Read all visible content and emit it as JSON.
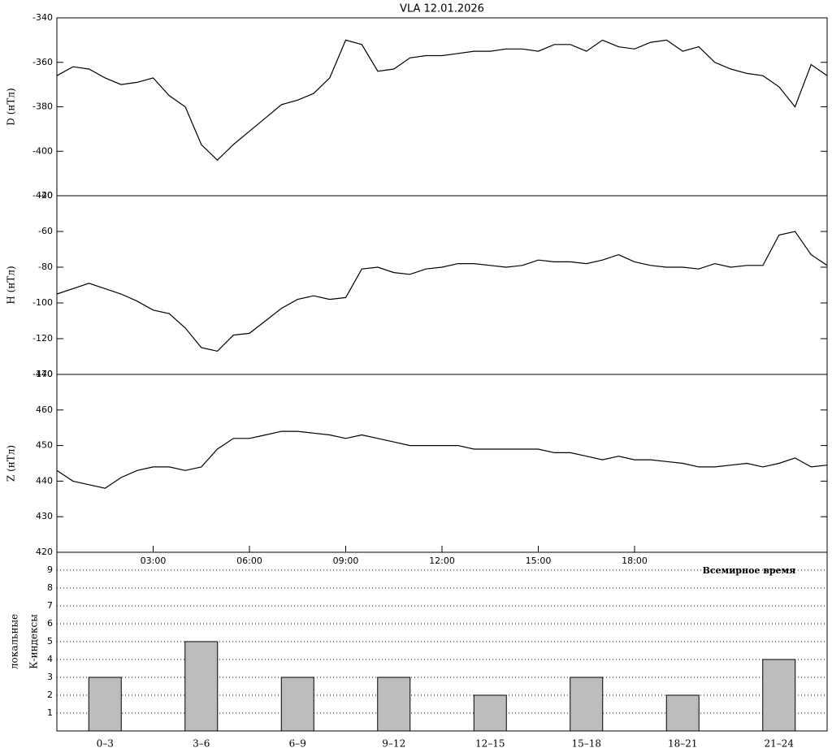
{
  "chart_data": [
    {
      "type": "line",
      "title": "VLA   12.01.2026",
      "ylabel": "D (нТл)",
      "color": "#000000",
      "xlim": [
        0,
        24
      ],
      "x": [
        0,
        0.5,
        1,
        1.5,
        2,
        2.5,
        3,
        3.5,
        4,
        4.5,
        5,
        5.5,
        6,
        6.5,
        7,
        7.5,
        8,
        8.5,
        9,
        9.5,
        10,
        10.5,
        11,
        11.5,
        12,
        12.5,
        13,
        13.5,
        14,
        14.5,
        15,
        15.5,
        16,
        16.5,
        17,
        17.5,
        18,
        18.5,
        19,
        19.5,
        20,
        20.5,
        21,
        21.5,
        22,
        22.5,
        23,
        23.5,
        24
      ],
      "values": [
        -366,
        -362,
        -363,
        -367,
        -370,
        -369,
        -367,
        -375,
        -380,
        -397,
        -404,
        -397,
        -391,
        -385,
        -379,
        -377,
        -374,
        -367,
        -350,
        -352,
        -364,
        -363,
        -358,
        -357,
        -357,
        -356,
        -355,
        -355,
        -354,
        -354,
        -355,
        -352,
        -352,
        -355,
        -350,
        -353,
        -354,
        -351,
        -350,
        -355,
        -353,
        -360,
        -363,
        -365,
        -366,
        -371,
        -380,
        -361,
        -366
      ],
      "ylim": [
        -420,
        -340
      ],
      "yticks": [
        -340,
        -360,
        -380,
        -400,
        -420
      ]
    },
    {
      "type": "line",
      "ylabel": "H (нТл)",
      "color": "#000000",
      "xlim": [
        0,
        24
      ],
      "x": [
        0,
        0.5,
        1,
        1.5,
        2,
        2.5,
        3,
        3.5,
        4,
        4.5,
        5,
        5.5,
        6,
        6.5,
        7,
        7.5,
        8,
        8.5,
        9,
        9.5,
        10,
        10.5,
        11,
        11.5,
        12,
        12.5,
        13,
        13.5,
        14,
        14.5,
        15,
        15.5,
        16,
        16.5,
        17,
        17.5,
        18,
        18.5,
        19,
        19.5,
        20,
        20.5,
        21,
        21.5,
        22,
        22.5,
        23,
        23.5,
        24
      ],
      "values": [
        -95,
        -92,
        -89,
        -92,
        -95,
        -99,
        -104,
        -106,
        -114,
        -125,
        -127,
        -118,
        -117,
        -110,
        -103,
        -98,
        -96,
        -98,
        -97,
        -81,
        -80,
        -83,
        -84,
        -81,
        -80,
        -78,
        -78,
        -79,
        -80,
        -79,
        -76,
        -77,
        -77,
        -78,
        -76,
        -73,
        -77,
        -79,
        -80,
        -80,
        -81,
        -78,
        -80,
        -79,
        -79,
        -62,
        -60,
        -73,
        -79
      ],
      "ylim": [
        -140,
        -40
      ],
      "yticks": [
        -40,
        -60,
        -80,
        -100,
        -120,
        -140
      ]
    },
    {
      "type": "line",
      "ylabel": "Z (нТл)",
      "xlabel": "Всемирное время",
      "color": "#000000",
      "xlim": [
        0,
        24
      ],
      "x": [
        0,
        0.5,
        1,
        1.5,
        2,
        2.5,
        3,
        3.5,
        4,
        4.5,
        5,
        5.5,
        6,
        6.5,
        7,
        7.5,
        8,
        8.5,
        9,
        9.5,
        10,
        10.5,
        11,
        11.5,
        12,
        12.5,
        13,
        13.5,
        14,
        14.5,
        15,
        15.5,
        16,
        16.5,
        17,
        17.5,
        18,
        18.5,
        19,
        19.5,
        20,
        20.5,
        21,
        21.5,
        22,
        22.5,
        23,
        23.5,
        24
      ],
      "values": [
        443,
        440,
        439,
        438,
        441,
        443,
        444,
        444,
        443,
        444,
        449,
        452,
        452,
        453,
        454,
        454,
        453.5,
        453,
        452,
        453,
        452,
        451,
        450,
        450,
        450,
        450,
        449,
        449,
        449,
        449,
        449,
        448,
        448,
        447,
        446,
        447,
        446,
        446,
        445.5,
        445,
        444,
        444,
        444.5,
        445,
        444,
        445,
        446.5,
        444,
        444.5
      ],
      "ylim": [
        420,
        470
      ],
      "yticks": [
        470,
        460,
        450,
        440,
        430,
        420
      ],
      "xticks": [
        {
          "value": 3,
          "label": "03:00"
        },
        {
          "value": 6,
          "label": "06:00"
        },
        {
          "value": 9,
          "label": "09:00"
        },
        {
          "value": 12,
          "label": "12:00"
        },
        {
          "value": 15,
          "label": "15:00"
        },
        {
          "value": 18,
          "label": "18:00"
        }
      ]
    },
    {
      "type": "bar",
      "ylabel": [
        "локальные",
        "К-индексы"
      ],
      "color": "#bdbdbd",
      "grid": true,
      "categories": [
        "0–3",
        "3–6",
        "6–9",
        "9–12",
        "12–15",
        "15–18",
        "18–21",
        "21–24"
      ],
      "values": [
        3,
        5,
        3,
        3,
        2,
        3,
        2,
        4
      ],
      "ylim": [
        0,
        10
      ],
      "yticks": [
        1,
        2,
        3,
        4,
        5,
        6,
        7,
        8,
        9
      ]
    }
  ]
}
